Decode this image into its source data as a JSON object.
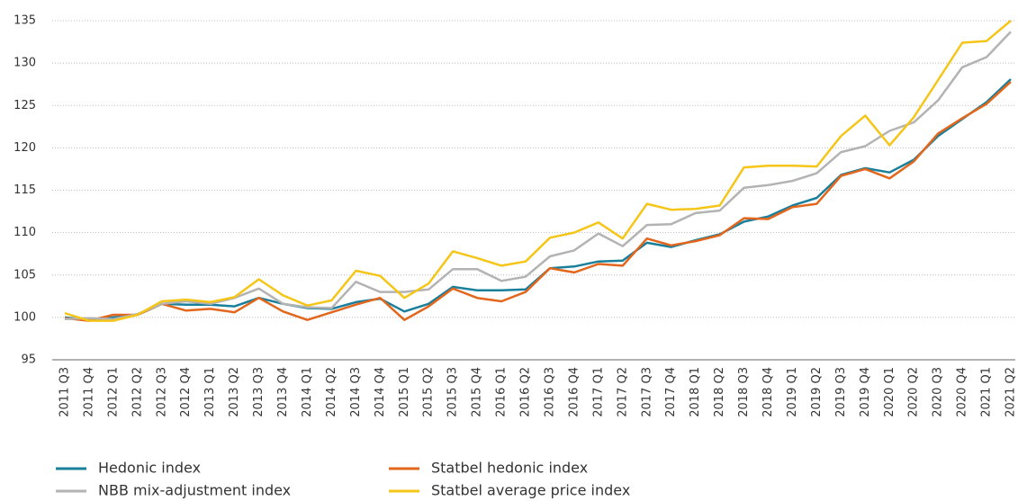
{
  "chart_data": {
    "type": "line",
    "categories": [
      "2011 Q3",
      "2011 Q4",
      "2012 Q1",
      "2012 Q2",
      "2012 Q3",
      "2012 Q4",
      "2013 Q1",
      "2013 Q2",
      "2013 Q3",
      "2013 Q4",
      "2014 Q1",
      "2014 Q2",
      "2014 Q3",
      "2014 Q4",
      "2015 Q1",
      "2015 Q2",
      "2015 Q3",
      "2015 Q4",
      "2016 Q1",
      "2016 Q2",
      "2016 Q3",
      "2016 Q4",
      "2017 Q1",
      "2017 Q2",
      "2017 Q3",
      "2017 Q4",
      "2018 Q1",
      "2018 Q2",
      "2018 Q3",
      "2018 Q4",
      "2019 Q1",
      "2019 Q2",
      "2019 Q3",
      "2019 Q4",
      "2020 Q1",
      "2020 Q2",
      "2020 Q3",
      "2020 Q4",
      "2021 Q1",
      "2021 Q2"
    ],
    "series": [
      {
        "name": "Hedonic index",
        "color": "#1a7f9a",
        "values": [
          100.0,
          99.7,
          100.0,
          100.3,
          101.6,
          101.5,
          101.5,
          101.3,
          102.3,
          101.6,
          101.1,
          101.0,
          101.8,
          102.2,
          100.7,
          101.6,
          103.6,
          103.2,
          103.2,
          103.3,
          105.8,
          106.0,
          106.6,
          106.7,
          108.8,
          108.3,
          109.1,
          109.8,
          111.3,
          111.9,
          113.2,
          114.1,
          116.8,
          117.6,
          117.1,
          118.6,
          121.4,
          123.4,
          125.4,
          128.1
        ]
      },
      {
        "name": "Statbel hedonic index",
        "color": "#e2661c",
        "values": [
          99.9,
          99.6,
          100.3,
          100.3,
          101.6,
          100.8,
          101.0,
          100.6,
          102.3,
          100.7,
          99.7,
          100.6,
          101.5,
          102.3,
          99.7,
          101.3,
          103.4,
          102.3,
          101.9,
          103.0,
          105.8,
          105.3,
          106.3,
          106.1,
          109.3,
          108.5,
          109.0,
          109.7,
          111.7,
          111.6,
          113.0,
          113.4,
          116.7,
          117.5,
          116.4,
          118.4,
          121.7,
          123.5,
          125.2,
          127.8
        ]
      },
      {
        "name": "NBB mix-adjustment index",
        "color": "#b3b3b3",
        "values": [
          99.8,
          99.9,
          99.8,
          100.4,
          101.6,
          101.9,
          101.6,
          102.3,
          103.4,
          101.6,
          101.2,
          101.1,
          104.2,
          103.0,
          103.0,
          103.3,
          105.7,
          105.7,
          104.3,
          104.8,
          107.2,
          107.9,
          109.9,
          108.4,
          110.9,
          111.0,
          112.3,
          112.6,
          115.3,
          115.6,
          116.1,
          117.0,
          119.5,
          120.2,
          122.0,
          123.0,
          125.6,
          129.5,
          130.7,
          133.7
        ]
      },
      {
        "name": "Statbel average price index",
        "color": "#f5c518",
        "values": [
          100.5,
          99.6,
          99.6,
          100.3,
          101.9,
          102.1,
          101.8,
          102.4,
          104.5,
          102.6,
          101.4,
          102.0,
          105.5,
          104.9,
          102.3,
          104.0,
          107.8,
          107.0,
          106.1,
          106.6,
          109.4,
          110.0,
          111.2,
          109.3,
          113.4,
          112.7,
          112.8,
          113.2,
          117.7,
          117.9,
          117.9,
          117.8,
          121.4,
          123.8,
          120.3,
          123.6,
          128.0,
          132.4,
          132.6,
          135.0
        ]
      }
    ],
    "ylim": [
      95,
      135
    ],
    "yticks": [
      95,
      100,
      105,
      110,
      115,
      120,
      125,
      130,
      135
    ],
    "grid": true,
    "legend": "bottom"
  }
}
